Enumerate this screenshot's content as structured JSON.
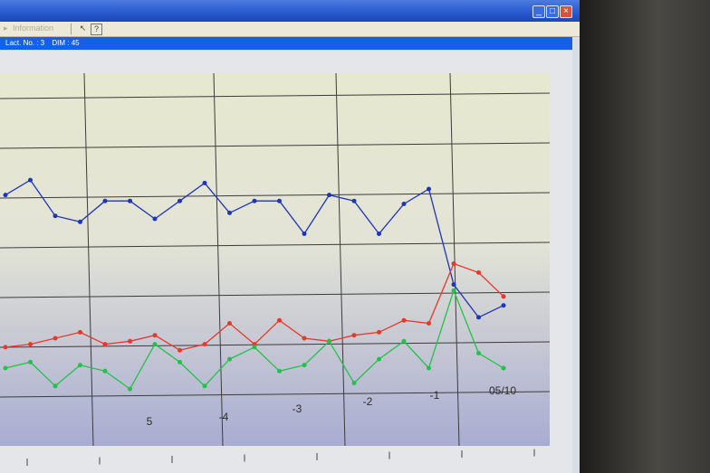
{
  "window": {
    "toolbar_item": "Information",
    "info_lact_label": "Lact. No. : 3",
    "info_dim_label": "DIM : 45"
  },
  "colors": {
    "blue_series": "#1f35b8",
    "red_series": "#e8382a",
    "green_series": "#22c24a"
  },
  "chart_data": {
    "type": "line",
    "title": "",
    "xlabel": "",
    "ylabel": "",
    "x_tick_labels": [
      "5",
      "-4",
      "-3",
      "-2",
      "-1",
      "05/10"
    ],
    "grid": true,
    "series": [
      {
        "color": "blue",
        "values": [
          0.78,
          0.83,
          0.71,
          0.69,
          0.76,
          0.76,
          0.7,
          0.76,
          0.82,
          0.72,
          0.76,
          0.76,
          0.65,
          0.78,
          0.76,
          0.65,
          0.75,
          0.8,
          0.48,
          0.37,
          0.41
        ]
      },
      {
        "color": "red",
        "values": [
          0.27,
          0.28,
          0.3,
          0.32,
          0.28,
          0.29,
          0.31,
          0.26,
          0.28,
          0.35,
          0.28,
          0.36,
          0.3,
          0.29,
          0.31,
          0.32,
          0.36,
          0.35,
          0.55,
          0.52,
          0.44
        ]
      },
      {
        "color": "green",
        "values": [
          0.2,
          0.22,
          0.14,
          0.21,
          0.19,
          0.13,
          0.28,
          0.22,
          0.14,
          0.23,
          0.27,
          0.19,
          0.21,
          0.29,
          0.15,
          0.23,
          0.29,
          0.2,
          0.46,
          0.25,
          0.2
        ]
      }
    ]
  }
}
